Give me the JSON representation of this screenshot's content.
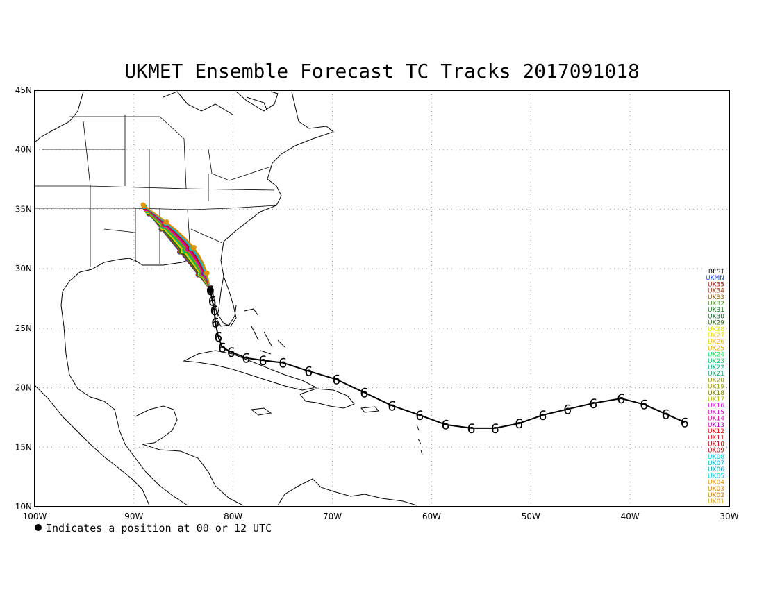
{
  "title": "UKMET Ensemble Forecast TC Tracks 2017091018",
  "footnote": "Indicates a position at 00 or 12 UTC",
  "axes": {
    "lon_labels": [
      "100W",
      "90W",
      "80W",
      "70W",
      "60W",
      "50W",
      "40W",
      "30W"
    ],
    "lat_labels": [
      "45N",
      "40N",
      "35N",
      "30N",
      "25N",
      "20N",
      "15N",
      "10N"
    ],
    "lon_range": [
      -100,
      -30
    ],
    "lat_range": [
      10,
      45
    ],
    "grid": "dotted"
  },
  "legend": {
    "placement": "right",
    "items": [
      {
        "label": "BEST",
        "color": "#000000"
      },
      {
        "label": "UKMN",
        "color": "#1e3cff"
      },
      {
        "label": "UK35",
        "color": "#a0140a"
      },
      {
        "label": "UK34",
        "color": "#a03c0a"
      },
      {
        "label": "UK33",
        "color": "#8c5a14"
      },
      {
        "label": "UK32",
        "color": "#3c8c14"
      },
      {
        "label": "UK31",
        "color": "#147814"
      },
      {
        "label": "UK30",
        "color": "#0a6428"
      },
      {
        "label": "UK29",
        "color": "#286414"
      },
      {
        "label": "UK28",
        "color": "#e6e600"
      },
      {
        "label": "UK27",
        "color": "#f0d200"
      },
      {
        "label": "UK26",
        "color": "#f0be00"
      },
      {
        "label": "UK25",
        "color": "#f0aa00"
      },
      {
        "label": "UK24",
        "color": "#00e650"
      },
      {
        "label": "UK23",
        "color": "#00c864"
      },
      {
        "label": "UK22",
        "color": "#00b478"
      },
      {
        "label": "UK21",
        "color": "#14a064"
      },
      {
        "label": "UK20",
        "color": "#8c8c00"
      },
      {
        "label": "UK19",
        "color": "#a0a014"
      },
      {
        "label": "UK18",
        "color": "#787800"
      },
      {
        "label": "UK17",
        "color": "#b4b400"
      },
      {
        "label": "UK16",
        "color": "#e600e6"
      },
      {
        "label": "UK15",
        "color": "#c800c8"
      },
      {
        "label": "UK14",
        "color": "#d200a0"
      },
      {
        "label": "UK13",
        "color": "#b400b4"
      },
      {
        "label": "UK12",
        "color": "#e60000"
      },
      {
        "label": "UK11",
        "color": "#d20000"
      },
      {
        "label": "UK10",
        "color": "#be0000"
      },
      {
        "label": "UK09",
        "color": "#aa0000"
      },
      {
        "label": "UK08",
        "color": "#00c8e6"
      },
      {
        "label": "UK07",
        "color": "#00b4d2"
      },
      {
        "label": "UK06",
        "color": "#00a0be"
      },
      {
        "label": "UK05",
        "color": "#00d2f0"
      },
      {
        "label": "UK04",
        "color": "#e68c00"
      },
      {
        "label": "UK03",
        "color": "#d28200"
      },
      {
        "label": "UK02",
        "color": "#c87800"
      },
      {
        "label": "UK01",
        "color": "#dc9600"
      }
    ]
  },
  "best_track": [
    {
      "lon": -34.5,
      "lat": 17.1
    },
    {
      "lon": -36.4,
      "lat": 17.8
    },
    {
      "lon": -38.6,
      "lat": 18.6
    },
    {
      "lon": -40.9,
      "lat": 19.1
    },
    {
      "lon": -43.7,
      "lat": 18.7
    },
    {
      "lon": -46.3,
      "lat": 18.2
    },
    {
      "lon": -48.8,
      "lat": 17.7
    },
    {
      "lon": -51.2,
      "lat": 17.0
    },
    {
      "lon": -53.6,
      "lat": 16.6
    },
    {
      "lon": -56.0,
      "lat": 16.6
    },
    {
      "lon": -58.6,
      "lat": 16.9
    },
    {
      "lon": -61.2,
      "lat": 17.7
    },
    {
      "lon": -64.0,
      "lat": 18.5
    },
    {
      "lon": -66.8,
      "lat": 19.6
    },
    {
      "lon": -69.6,
      "lat": 20.7
    },
    {
      "lon": -72.4,
      "lat": 21.4
    },
    {
      "lon": -75.0,
      "lat": 22.1
    },
    {
      "lon": -77.0,
      "lat": 22.3
    },
    {
      "lon": -78.7,
      "lat": 22.5
    },
    {
      "lon": -80.2,
      "lat": 23.0
    },
    {
      "lon": -81.1,
      "lat": 23.4
    },
    {
      "lon": -81.5,
      "lat": 24.3
    },
    {
      "lon": -81.8,
      "lat": 25.5
    },
    {
      "lon": -81.9,
      "lat": 26.5
    },
    {
      "lon": -82.1,
      "lat": 27.3
    },
    {
      "lon": -82.3,
      "lat": 28.2
    }
  ],
  "ensemble_center": {
    "lon": -82.3,
    "lat": 28.2
  },
  "ensemble_end": {
    "lon": -88.8,
    "lat": 35.0
  }
}
